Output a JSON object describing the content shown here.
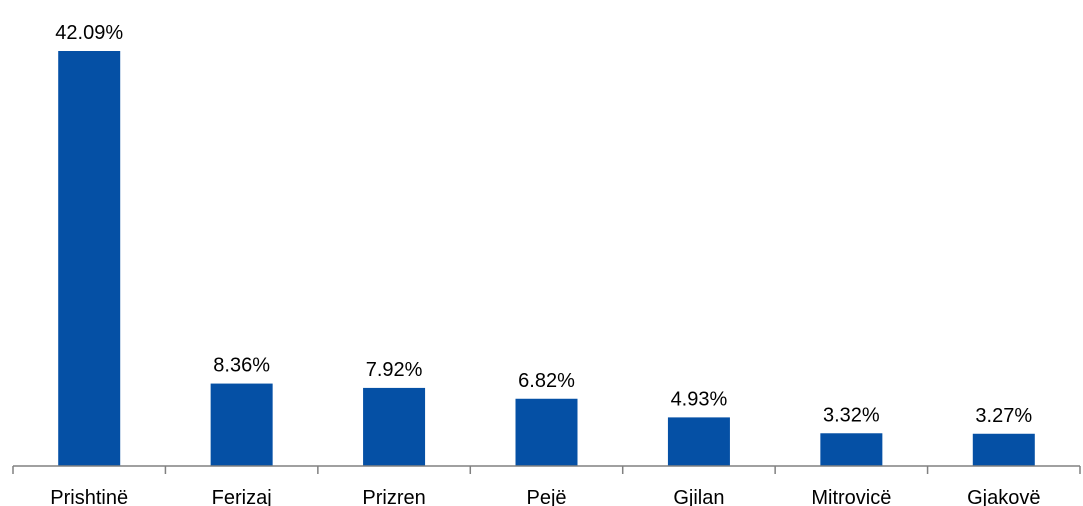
{
  "chart_data": {
    "type": "bar",
    "categories": [
      "Prishtinë",
      "Ferizaj",
      "Prizren",
      "Pejë",
      "Gjilan",
      "Mitrovicë",
      "Gjakovë"
    ],
    "values": [
      42.09,
      8.36,
      7.92,
      6.82,
      4.93,
      3.32,
      3.27
    ],
    "data_labels": [
      "42.09%",
      "8.36%",
      "7.92%",
      "6.82%",
      "4.93%",
      "3.32%",
      "3.27%"
    ],
    "ylim": [
      0,
      42.09
    ],
    "grid": false,
    "legend": "none",
    "bar_color": "#0550A5"
  }
}
